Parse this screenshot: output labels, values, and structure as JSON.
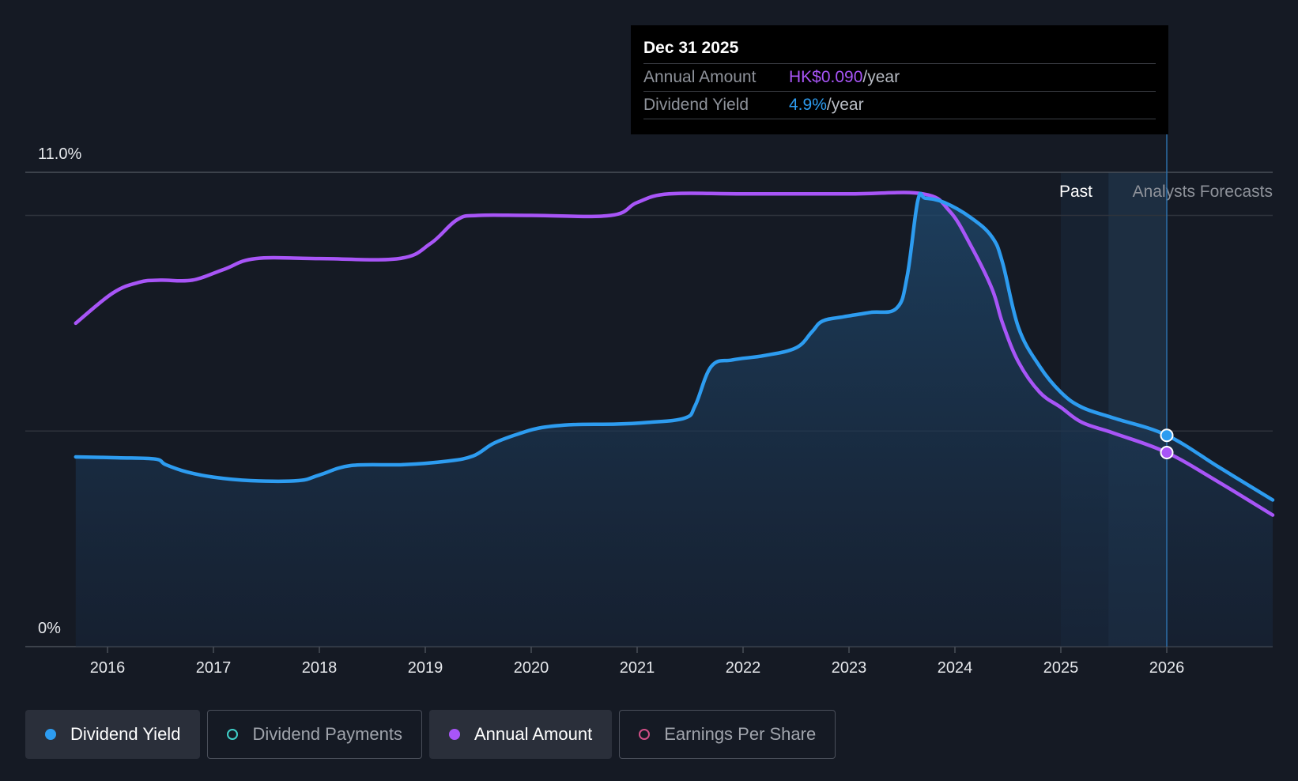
{
  "chart_data": {
    "type": "line",
    "x_ticks": [
      "2016",
      "2017",
      "2018",
      "2019",
      "2020",
      "2021",
      "2022",
      "2023",
      "2024",
      "2025",
      "2026"
    ],
    "y_tick_labels": [
      "0%",
      "11.0%"
    ],
    "regions": {
      "past_label": "Past",
      "forecast_label": "Analysts Forecasts"
    },
    "tooltip": {
      "date": "Dec 31 2025",
      "rows": [
        {
          "label": "Annual Amount",
          "value": "HK$0.090",
          "unit": "/year",
          "color": "#a855f7"
        },
        {
          "label": "Dividend Yield",
          "value": "4.9%",
          "unit": "/year",
          "color": "#2d9cf0"
        }
      ]
    },
    "series": [
      {
        "name": "Dividend Yield",
        "color": "#2d9cf0",
        "unit": "%",
        "points": [
          [
            2015.7,
            4.4
          ],
          [
            2016.1,
            4.38
          ],
          [
            2016.45,
            4.35
          ],
          [
            2016.55,
            4.22
          ],
          [
            2016.75,
            4.05
          ],
          [
            2017.0,
            3.93
          ],
          [
            2017.35,
            3.85
          ],
          [
            2017.8,
            3.85
          ],
          [
            2018.0,
            3.98
          ],
          [
            2018.3,
            4.2
          ],
          [
            2018.8,
            4.22
          ],
          [
            2019.2,
            4.3
          ],
          [
            2019.45,
            4.42
          ],
          [
            2019.65,
            4.72
          ],
          [
            2019.9,
            4.95
          ],
          [
            2020.1,
            5.08
          ],
          [
            2020.4,
            5.15
          ],
          [
            2020.8,
            5.16
          ],
          [
            2021.1,
            5.2
          ],
          [
            2021.45,
            5.3
          ],
          [
            2021.55,
            5.6
          ],
          [
            2021.7,
            6.5
          ],
          [
            2021.9,
            6.65
          ],
          [
            2022.2,
            6.75
          ],
          [
            2022.5,
            6.93
          ],
          [
            2022.65,
            7.3
          ],
          [
            2022.75,
            7.55
          ],
          [
            2022.95,
            7.65
          ],
          [
            2023.2,
            7.75
          ],
          [
            2023.45,
            7.85
          ],
          [
            2023.55,
            8.6
          ],
          [
            2023.65,
            10.35
          ],
          [
            2023.72,
            10.4
          ],
          [
            2023.9,
            10.3
          ],
          [
            2024.15,
            9.95
          ],
          [
            2024.35,
            9.5
          ],
          [
            2024.45,
            8.9
          ],
          [
            2024.6,
            7.4
          ],
          [
            2024.8,
            6.5
          ],
          [
            2025.0,
            5.9
          ],
          [
            2025.2,
            5.55
          ],
          [
            2025.5,
            5.3
          ],
          [
            2026.0,
            4.9
          ],
          [
            2026.5,
            4.15
          ],
          [
            2027.0,
            3.4
          ]
        ]
      },
      {
        "name": "Annual Amount",
        "color": "#a855f7",
        "unit": "HK$",
        "points": [
          [
            2015.7,
            7.5
          ],
          [
            2016.05,
            8.2
          ],
          [
            2016.3,
            8.45
          ],
          [
            2016.5,
            8.5
          ],
          [
            2016.8,
            8.5
          ],
          [
            2017.1,
            8.75
          ],
          [
            2017.4,
            9.0
          ],
          [
            2018.0,
            9.0
          ],
          [
            2018.75,
            9.0
          ],
          [
            2019.05,
            9.35
          ],
          [
            2019.3,
            9.9
          ],
          [
            2019.5,
            10.0
          ],
          [
            2020.0,
            10.0
          ],
          [
            2020.75,
            10.0
          ],
          [
            2021.0,
            10.3
          ],
          [
            2021.3,
            10.5
          ],
          [
            2022.0,
            10.5
          ],
          [
            2023.0,
            10.5
          ],
          [
            2023.7,
            10.5
          ],
          [
            2023.95,
            10.1
          ],
          [
            2024.15,
            9.3
          ],
          [
            2024.35,
            8.3
          ],
          [
            2024.45,
            7.5
          ],
          [
            2024.6,
            6.6
          ],
          [
            2024.8,
            5.9
          ],
          [
            2025.0,
            5.55
          ],
          [
            2025.2,
            5.2
          ],
          [
            2025.5,
            4.95
          ],
          [
            2026.0,
            4.5
          ],
          [
            2026.5,
            3.8
          ],
          [
            2027.0,
            3.05
          ]
        ]
      }
    ],
    "highlight_x": 2026.0,
    "legend": [
      {
        "name": "Dividend Yield",
        "color": "#2d9cf0",
        "active": true
      },
      {
        "name": "Dividend Payments",
        "color": "#3fd0c9",
        "active": false
      },
      {
        "name": "Annual Amount",
        "color": "#a855f7",
        "active": true
      },
      {
        "name": "Earnings Per Share",
        "color": "#d24f87",
        "active": false
      }
    ]
  }
}
